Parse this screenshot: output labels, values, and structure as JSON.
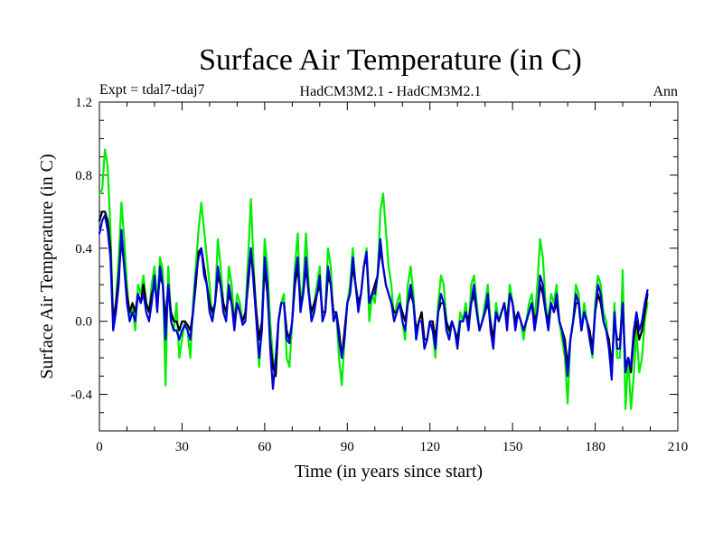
{
  "chart_data": {
    "type": "line",
    "title": "Surface Air Temperature (in C)",
    "subtitle_left": "Expt = tdal7-tdaj7",
    "subtitle_center": "HadCM3M2.1 - HadCM3M2.1",
    "subtitle_right": "Ann",
    "xlabel": "Time (in years since start)",
    "ylabel": "Surface Air Temperature (in C)",
    "xlim": [
      0,
      210
    ],
    "ylim": [
      -0.6,
      1.2
    ],
    "xticks": [
      0,
      30,
      60,
      90,
      120,
      150,
      180,
      210
    ],
    "xtick_labels": [
      "0",
      "30",
      "60",
      "90",
      "120",
      "150",
      "180",
      "210"
    ],
    "yticks": [
      -0.4,
      0.0,
      0.4,
      0.8,
      1.2
    ],
    "ytick_labels": [
      "-0.4",
      "0.0",
      "0.4",
      "0.8",
      "1.2"
    ],
    "series": [
      {
        "name": "green",
        "color": "#00ee00",
        "x": [
          0,
          1,
          2,
          3,
          4,
          5,
          6,
          7,
          8,
          9,
          10,
          11,
          12,
          13,
          14,
          15,
          16,
          17,
          18,
          19,
          20,
          21,
          22,
          23,
          24,
          25,
          26,
          27,
          28,
          29,
          30,
          31,
          32,
          33,
          34,
          35,
          36,
          37,
          38,
          39,
          40,
          41,
          42,
          43,
          44,
          45,
          46,
          47,
          48,
          49,
          50,
          51,
          52,
          53,
          54,
          55,
          56,
          57,
          58,
          59,
          60,
          61,
          62,
          63,
          64,
          65,
          66,
          67,
          68,
          69,
          70,
          71,
          72,
          73,
          74,
          75,
          76,
          77,
          78,
          79,
          80,
          81,
          82,
          83,
          84,
          85,
          86,
          87,
          88,
          89,
          90,
          91,
          92,
          93,
          94,
          95,
          96,
          97,
          98,
          99,
          100,
          101,
          102,
          103,
          104,
          105,
          106,
          107,
          108,
          109,
          110,
          111,
          112,
          113,
          114,
          115,
          116,
          117,
          118,
          119,
          120,
          121,
          122,
          123,
          124,
          125,
          126,
          127,
          128,
          129,
          130,
          131,
          132,
          133,
          134,
          135,
          136,
          137,
          138,
          139,
          140,
          141,
          142,
          143,
          144,
          145,
          146,
          147,
          148,
          149,
          150,
          151,
          152,
          153,
          154,
          155,
          156,
          157,
          158,
          159,
          160,
          161,
          162,
          163,
          164,
          165,
          166,
          167,
          168,
          169,
          170,
          171,
          172,
          173,
          174,
          175,
          176,
          177,
          178,
          179,
          180,
          181,
          182,
          183,
          184,
          185,
          186,
          187,
          188,
          189,
          190,
          191,
          192,
          193,
          194,
          195,
          196,
          197,
          198,
          199
        ],
        "values": [
          0.7,
          0.72,
          0.94,
          0.85,
          0.5,
          0.0,
          0.1,
          0.35,
          0.65,
          0.45,
          0.2,
          0.0,
          0.1,
          -0.05,
          0.2,
          0.15,
          0.25,
          0.1,
          0.05,
          0.2,
          0.3,
          0.1,
          0.35,
          0.28,
          -0.35,
          0.3,
          0.0,
          -0.05,
          0.1,
          -0.2,
          -0.1,
          0.0,
          -0.05,
          -0.2,
          0.1,
          0.3,
          0.5,
          0.65,
          0.5,
          0.35,
          0.2,
          0.0,
          0.1,
          0.45,
          0.3,
          0.1,
          0.0,
          0.3,
          0.2,
          0.0,
          0.15,
          0.1,
          0.0,
          0.05,
          0.35,
          0.67,
          0.3,
          0.0,
          -0.25,
          0.0,
          0.45,
          0.3,
          0.0,
          -0.2,
          -0.3,
          0.0,
          0.1,
          0.15,
          -0.2,
          -0.25,
          0.0,
          0.3,
          0.48,
          0.1,
          0.2,
          0.48,
          0.2,
          0.0,
          0.1,
          0.2,
          0.3,
          0.0,
          0.05,
          0.4,
          0.3,
          0.0,
          0.05,
          -0.2,
          -0.35,
          -0.1,
          0.1,
          0.2,
          0.4,
          0.2,
          0.1,
          0.15,
          0.3,
          0.4,
          0.0,
          0.15,
          0.1,
          0.25,
          0.6,
          0.7,
          0.5,
          0.3,
          0.2,
          0.0,
          0.1,
          0.15,
          0.0,
          -0.1,
          0.2,
          0.3,
          0.15,
          -0.1,
          0.0,
          0.05,
          -0.15,
          -0.1,
          0.0,
          -0.05,
          -0.2,
          0.1,
          0.25,
          0.2,
          0.0,
          -0.1,
          0.0,
          -0.05,
          -0.1,
          0.05,
          0.0,
          0.1,
          -0.05,
          0.2,
          0.25,
          0.1,
          -0.05,
          0.0,
          0.1,
          0.2,
          0.0,
          -0.15,
          0.1,
          0.0,
          0.05,
          0.1,
          0.0,
          0.2,
          0.1,
          0.0,
          0.05,
          0.0,
          -0.1,
          0.0,
          0.1,
          0.15,
          0.0,
          0.2,
          0.45,
          0.35,
          0.1,
          0.0,
          0.15,
          0.1,
          0.2,
          0.0,
          -0.1,
          -0.2,
          -0.45,
          -0.1,
          0.0,
          0.2,
          0.15,
          -0.05,
          0.1,
          0.0,
          -0.1,
          -0.2,
          0.1,
          0.25,
          0.2,
          0.05,
          0.0,
          -0.15,
          -0.3,
          0.1,
          -0.2,
          -0.2,
          0.28,
          -0.48,
          -0.2,
          -0.48,
          -0.3,
          -0.05,
          -0.28,
          -0.2,
          0.0,
          0.1
        ]
      },
      {
        "name": "black",
        "color": "#000000",
        "x": [
          0,
          1,
          2,
          3,
          4,
          5,
          6,
          7,
          8,
          9,
          10,
          11,
          12,
          13,
          14,
          15,
          16,
          17,
          18,
          19,
          20,
          21,
          22,
          23,
          24,
          25,
          26,
          27,
          28,
          29,
          30,
          31,
          32,
          33,
          34,
          35,
          36,
          37,
          38,
          39,
          40,
          41,
          42,
          43,
          44,
          45,
          46,
          47,
          48,
          49,
          50,
          51,
          52,
          53,
          54,
          55,
          56,
          57,
          58,
          59,
          60,
          61,
          62,
          63,
          64,
          65,
          66,
          67,
          68,
          69,
          70,
          71,
          72,
          73,
          74,
          75,
          76,
          77,
          78,
          79,
          80,
          81,
          82,
          83,
          84,
          85,
          86,
          87,
          88,
          89,
          90,
          91,
          92,
          93,
          94,
          95,
          96,
          97,
          98,
          99,
          100,
          101,
          102,
          103,
          104,
          105,
          106,
          107,
          108,
          109,
          110,
          111,
          112,
          113,
          114,
          115,
          116,
          117,
          118,
          119,
          120,
          121,
          122,
          123,
          124,
          125,
          126,
          127,
          128,
          129,
          130,
          131,
          132,
          133,
          134,
          135,
          136,
          137,
          138,
          139,
          140,
          141,
          142,
          143,
          144,
          145,
          146,
          147,
          148,
          149,
          150,
          151,
          152,
          153,
          154,
          155,
          156,
          157,
          158,
          159,
          160,
          161,
          162,
          163,
          164,
          165,
          166,
          167,
          168,
          169,
          170,
          171,
          172,
          173,
          174,
          175,
          176,
          177,
          178,
          179,
          180,
          181,
          182,
          183,
          184,
          185,
          186,
          187,
          188,
          189,
          190,
          191,
          192,
          193,
          194,
          195,
          196,
          197,
          198,
          199
        ],
        "values": [
          0.55,
          0.6,
          0.6,
          0.55,
          0.4,
          0.0,
          0.1,
          0.25,
          0.45,
          0.3,
          0.15,
          0.05,
          0.1,
          0.05,
          0.15,
          0.1,
          0.2,
          0.1,
          0.05,
          0.15,
          0.2,
          0.1,
          0.25,
          0.2,
          0.0,
          0.2,
          0.05,
          0.0,
          0.0,
          -0.05,
          0.0,
          0.0,
          -0.02,
          -0.05,
          0.05,
          0.2,
          0.38,
          0.4,
          0.3,
          0.2,
          0.1,
          0.05,
          0.1,
          0.25,
          0.2,
          0.1,
          0.05,
          0.15,
          0.1,
          0.0,
          0.1,
          0.05,
          0.0,
          0.05,
          0.2,
          0.38,
          0.25,
          0.05,
          -0.1,
          0.0,
          0.3,
          0.15,
          -0.1,
          -0.25,
          -0.3,
          0.0,
          0.1,
          0.1,
          -0.05,
          -0.1,
          0.0,
          0.2,
          0.3,
          0.1,
          0.15,
          0.3,
          0.15,
          0.05,
          0.1,
          0.15,
          0.2,
          0.05,
          0.05,
          0.25,
          0.2,
          0.05,
          0.05,
          -0.05,
          -0.2,
          -0.05,
          0.1,
          0.15,
          0.3,
          0.2,
          0.1,
          0.15,
          0.3,
          0.35,
          0.1,
          0.15,
          0.2,
          0.25,
          0.4,
          0.3,
          0.2,
          0.15,
          0.1,
          0.05,
          0.05,
          0.1,
          0.05,
          0.0,
          0.1,
          0.15,
          0.1,
          -0.05,
          0.0,
          0.05,
          -0.1,
          -0.1,
          0.0,
          0.0,
          -0.1,
          0.05,
          0.1,
          0.1,
          0.0,
          -0.05,
          0.0,
          -0.05,
          -0.1,
          0.0,
          0.0,
          0.05,
          0.0,
          0.1,
          0.15,
          0.05,
          -0.05,
          0.0,
          0.05,
          0.1,
          0.0,
          -0.1,
          0.05,
          0.0,
          0.05,
          0.1,
          0.0,
          0.15,
          0.1,
          0.0,
          0.05,
          0.0,
          -0.05,
          0.0,
          0.05,
          0.1,
          0.0,
          0.05,
          0.2,
          0.15,
          0.05,
          0.0,
          0.1,
          0.05,
          0.1,
          0.0,
          -0.05,
          -0.1,
          -0.25,
          -0.1,
          0.0,
          0.1,
          0.1,
          -0.05,
          0.05,
          0.0,
          -0.05,
          -0.15,
          0.05,
          0.15,
          0.1,
          0.0,
          -0.05,
          -0.1,
          -0.25,
          0.0,
          -0.1,
          -0.1,
          0.1,
          -0.25,
          -0.2,
          -0.28,
          -0.1,
          0.0,
          -0.1,
          -0.05,
          0.05,
          0.15
        ]
      },
      {
        "name": "blue",
        "color": "#0000dd",
        "x": [
          0,
          1,
          2,
          3,
          4,
          5,
          6,
          7,
          8,
          9,
          10,
          11,
          12,
          13,
          14,
          15,
          16,
          17,
          18,
          19,
          20,
          21,
          22,
          23,
          24,
          25,
          26,
          27,
          28,
          29,
          30,
          31,
          32,
          33,
          34,
          35,
          36,
          37,
          38,
          39,
          40,
          41,
          42,
          43,
          44,
          45,
          46,
          47,
          48,
          49,
          50,
          51,
          52,
          53,
          54,
          55,
          56,
          57,
          58,
          59,
          60,
          61,
          62,
          63,
          64,
          65,
          66,
          67,
          68,
          69,
          70,
          71,
          72,
          73,
          74,
          75,
          76,
          77,
          78,
          79,
          80,
          81,
          82,
          83,
          84,
          85,
          86,
          87,
          88,
          89,
          90,
          91,
          92,
          93,
          94,
          95,
          96,
          97,
          98,
          99,
          100,
          101,
          102,
          103,
          104,
          105,
          106,
          107,
          108,
          109,
          110,
          111,
          112,
          113,
          114,
          115,
          116,
          117,
          118,
          119,
          120,
          121,
          122,
          123,
          124,
          125,
          126,
          127,
          128,
          129,
          130,
          131,
          132,
          133,
          134,
          135,
          136,
          137,
          138,
          139,
          140,
          141,
          142,
          143,
          144,
          145,
          146,
          147,
          148,
          149,
          150,
          151,
          152,
          153,
          154,
          155,
          156,
          157,
          158,
          159,
          160,
          161,
          162,
          163,
          164,
          165,
          166,
          167,
          168,
          169,
          170,
          171,
          172,
          173,
          174,
          175,
          176,
          177,
          178,
          179,
          180,
          181,
          182,
          183,
          184,
          185,
          186,
          187,
          188,
          189,
          190,
          191,
          192,
          193,
          194,
          195,
          196,
          197,
          198,
          199
        ],
        "values": [
          0.48,
          0.55,
          0.58,
          0.5,
          0.35,
          -0.05,
          0.05,
          0.2,
          0.5,
          0.3,
          0.1,
          0.0,
          0.05,
          0.0,
          0.15,
          0.1,
          0.15,
          0.05,
          0.0,
          0.1,
          0.25,
          0.05,
          0.3,
          0.2,
          -0.1,
          0.2,
          0.0,
          -0.05,
          -0.05,
          -0.1,
          -0.05,
          -0.02,
          -0.05,
          -0.1,
          0.05,
          0.25,
          0.35,
          0.4,
          0.25,
          0.2,
          0.05,
          0.0,
          0.1,
          0.3,
          0.2,
          0.05,
          0.0,
          0.2,
          0.1,
          -0.05,
          0.1,
          0.05,
          -0.02,
          0.0,
          0.25,
          0.4,
          0.2,
          0.0,
          -0.2,
          -0.05,
          0.35,
          0.2,
          -0.15,
          -0.37,
          -0.2,
          0.0,
          0.1,
          0.1,
          -0.1,
          -0.12,
          0.0,
          0.25,
          0.35,
          0.05,
          0.15,
          0.35,
          0.15,
          0.0,
          0.05,
          0.15,
          0.25,
          0.0,
          0.05,
          0.3,
          0.2,
          0.0,
          0.05,
          -0.1,
          -0.2,
          -0.1,
          0.1,
          0.15,
          0.35,
          0.2,
          0.05,
          0.15,
          0.3,
          0.38,
          0.1,
          0.15,
          0.15,
          0.25,
          0.45,
          0.3,
          0.2,
          0.15,
          0.1,
          0.0,
          0.05,
          0.1,
          0.0,
          -0.05,
          0.1,
          0.2,
          0.1,
          -0.1,
          0.0,
          0.0,
          -0.15,
          -0.1,
          0.0,
          -0.05,
          -0.15,
          0.05,
          0.15,
          0.1,
          -0.05,
          -0.1,
          0.0,
          -0.05,
          -0.15,
          0.0,
          0.0,
          0.05,
          -0.05,
          0.1,
          0.2,
          0.05,
          -0.05,
          0.0,
          0.05,
          0.15,
          -0.05,
          -0.15,
          0.05,
          0.0,
          0.05,
          0.1,
          -0.05,
          0.15,
          0.1,
          -0.05,
          0.05,
          0.0,
          -0.05,
          0.0,
          0.05,
          0.1,
          -0.05,
          0.05,
          0.25,
          0.2,
          0.05,
          -0.05,
          0.1,
          0.05,
          0.15,
          0.0,
          -0.05,
          -0.15,
          -0.3,
          -0.1,
          0.0,
          0.15,
          0.1,
          -0.05,
          0.05,
          0.0,
          -0.1,
          -0.18,
          0.05,
          0.2,
          0.15,
          0.0,
          -0.05,
          -0.15,
          -0.32,
          0.05,
          -0.15,
          -0.15,
          0.1,
          -0.28,
          -0.2,
          -0.25,
          -0.05,
          0.05,
          -0.05,
          0.0,
          0.1,
          0.17
        ]
      }
    ]
  }
}
